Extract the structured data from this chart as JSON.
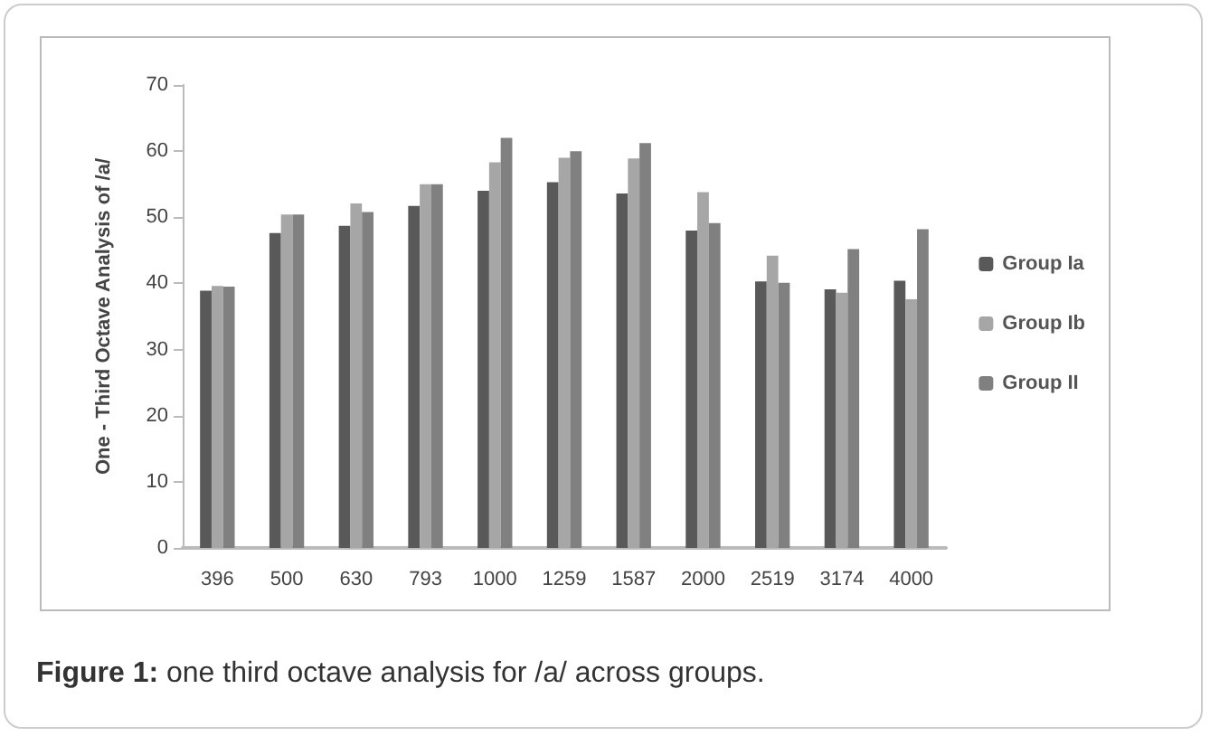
{
  "chart_data": {
    "type": "bar",
    "ylabel": "One - Third Octave Analysis of /a/",
    "categories": [
      "396",
      "500",
      "630",
      "793",
      "1000",
      "1259",
      "1587",
      "2000",
      "2519",
      "3174",
      "4000"
    ],
    "series": [
      {
        "name": "Group Ia",
        "color": "#595959",
        "values": [
          38.9,
          47.6,
          48.7,
          51.7,
          54.0,
          55.3,
          53.6,
          48.0,
          40.3,
          39.1,
          40.4
        ]
      },
      {
        "name": "Group Ib",
        "color": "#a6a6a6",
        "values": [
          39.6,
          50.4,
          52.1,
          55.0,
          58.3,
          59.0,
          58.9,
          53.8,
          44.2,
          38.6,
          37.6
        ]
      },
      {
        "name": "Group II",
        "color": "#808080",
        "values": [
          39.5,
          50.4,
          50.8,
          55.0,
          62.0,
          60.0,
          61.2,
          49.1,
          40.1,
          45.2,
          48.2
        ]
      }
    ],
    "ylim": [
      0,
      70
    ],
    "yticks": [
      0,
      10,
      20,
      30,
      40,
      50,
      60,
      70
    ],
    "grid": false,
    "legend": "right",
    "annotations": [
      "Figure 1: one third octave analysis for /a/ across groups."
    ]
  }
}
